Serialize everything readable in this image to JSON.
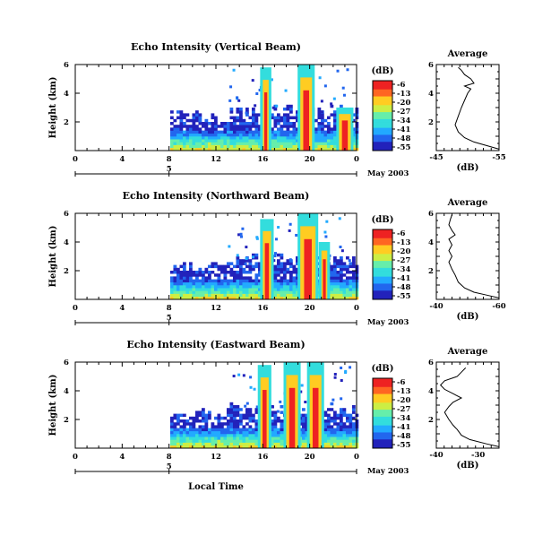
{
  "chart_data": {
    "type": "heatmap",
    "x_axis": {
      "ticks": [
        "0",
        "4",
        "8",
        "12",
        "16",
        "20",
        "0"
      ],
      "range": [
        0,
        24
      ],
      "date_tick": "5",
      "date_label": "May 2003",
      "xlabel": "Local Time"
    },
    "y_axis": {
      "ylabel": "Height (km)",
      "ticks": [
        "2",
        "4",
        "6"
      ],
      "range": [
        0,
        6
      ]
    },
    "colorbar": {
      "unit": "(dB)",
      "ticks": [
        "-6",
        "-13",
        "-20",
        "-27",
        "-34",
        "-41",
        "-48",
        "-55"
      ],
      "range": [
        -55,
        -6
      ],
      "colors": [
        "#2222bb",
        "#2266ee",
        "#22aaff",
        "#33dddd",
        "#66eeaa",
        "#ccee44",
        "#ffcc22",
        "#ff6622",
        "#ee2222"
      ]
    },
    "panels": [
      {
        "title": "Echo Intensity (Vertical Beam)",
        "avg": {
          "title": "Average",
          "xlabel": "(dB)",
          "xticks": [
            "-45",
            "-55"
          ],
          "xrange": [
            -45,
            -55
          ],
          "profile": [
            [
              -55,
              0.1
            ],
            [
              -53,
              0.35
            ],
            [
              -51,
              0.6
            ],
            [
              -49.5,
              0.9
            ],
            [
              -48.5,
              1.3
            ],
            [
              -48,
              1.8
            ],
            [
              -48.5,
              2.4
            ],
            [
              -49,
              3.0
            ],
            [
              -49.5,
              3.5
            ],
            [
              -50,
              4.0
            ],
            [
              -50.5,
              4.3
            ],
            [
              -49.5,
              4.5
            ],
            [
              -51,
              4.7
            ],
            [
              -50.5,
              5.0
            ],
            [
              -49.5,
              5.3
            ],
            [
              -49,
              5.6
            ],
            [
              -48.5,
              5.8
            ]
          ]
        },
        "spikes": [
          [
            16.0,
            16.5,
            5.8
          ],
          [
            19.2,
            20.2,
            6.0
          ],
          [
            22.5,
            23.5,
            3.0
          ]
        ]
      },
      {
        "title": "Echo Intensity (Northward Beam)",
        "avg": {
          "title": "Average",
          "xlabel": "(dB)",
          "xticks": [
            "-40",
            "-60"
          ],
          "xrange": [
            -40,
            -60
          ],
          "profile": [
            [
              -60,
              0.1
            ],
            [
              -56,
              0.3
            ],
            [
              -52,
              0.5
            ],
            [
              -49,
              0.8
            ],
            [
              -47,
              1.2
            ],
            [
              -46,
              1.7
            ],
            [
              -45,
              2.1
            ],
            [
              -44,
              2.6
            ],
            [
              -45,
              3.0
            ],
            [
              -44,
              3.4
            ],
            [
              -45,
              3.8
            ],
            [
              -44,
              4.2
            ],
            [
              -46,
              4.5
            ],
            [
              -45,
              4.8
            ],
            [
              -44,
              5.2
            ],
            [
              -44.5,
              5.6
            ],
            [
              -45,
              5.9
            ]
          ]
        },
        "spikes": [
          [
            16.0,
            16.7,
            5.6
          ],
          [
            19.2,
            20.5,
            6.0
          ],
          [
            21.0,
            21.5,
            4.0
          ]
        ]
      },
      {
        "title": "Echo Intensity (Eastward Beam)",
        "avg": {
          "title": "Average",
          "xlabel": "(dB)",
          "xticks": [
            "-40",
            "-30"
          ],
          "xrange": [
            -40,
            -25
          ],
          "profile": [
            [
              -25,
              0.1
            ],
            [
              -28,
              0.3
            ],
            [
              -32,
              0.6
            ],
            [
              -34,
              0.9
            ],
            [
              -35,
              1.3
            ],
            [
              -36,
              1.6
            ],
            [
              -37,
              2.0
            ],
            [
              -38,
              2.5
            ],
            [
              -37,
              2.9
            ],
            [
              -36,
              3.2
            ],
            [
              -34,
              3.5
            ],
            [
              -36,
              3.8
            ],
            [
              -38,
              4.1
            ],
            [
              -39,
              4.4
            ],
            [
              -38,
              4.7
            ],
            [
              -35,
              5.0
            ],
            [
              -34,
              5.3
            ],
            [
              -33,
              5.6
            ]
          ]
        },
        "spikes": [
          [
            15.8,
            16.5,
            5.8
          ],
          [
            18.0,
            19.0,
            6.0
          ],
          [
            20.0,
            21.0,
            6.0
          ]
        ]
      }
    ]
  }
}
